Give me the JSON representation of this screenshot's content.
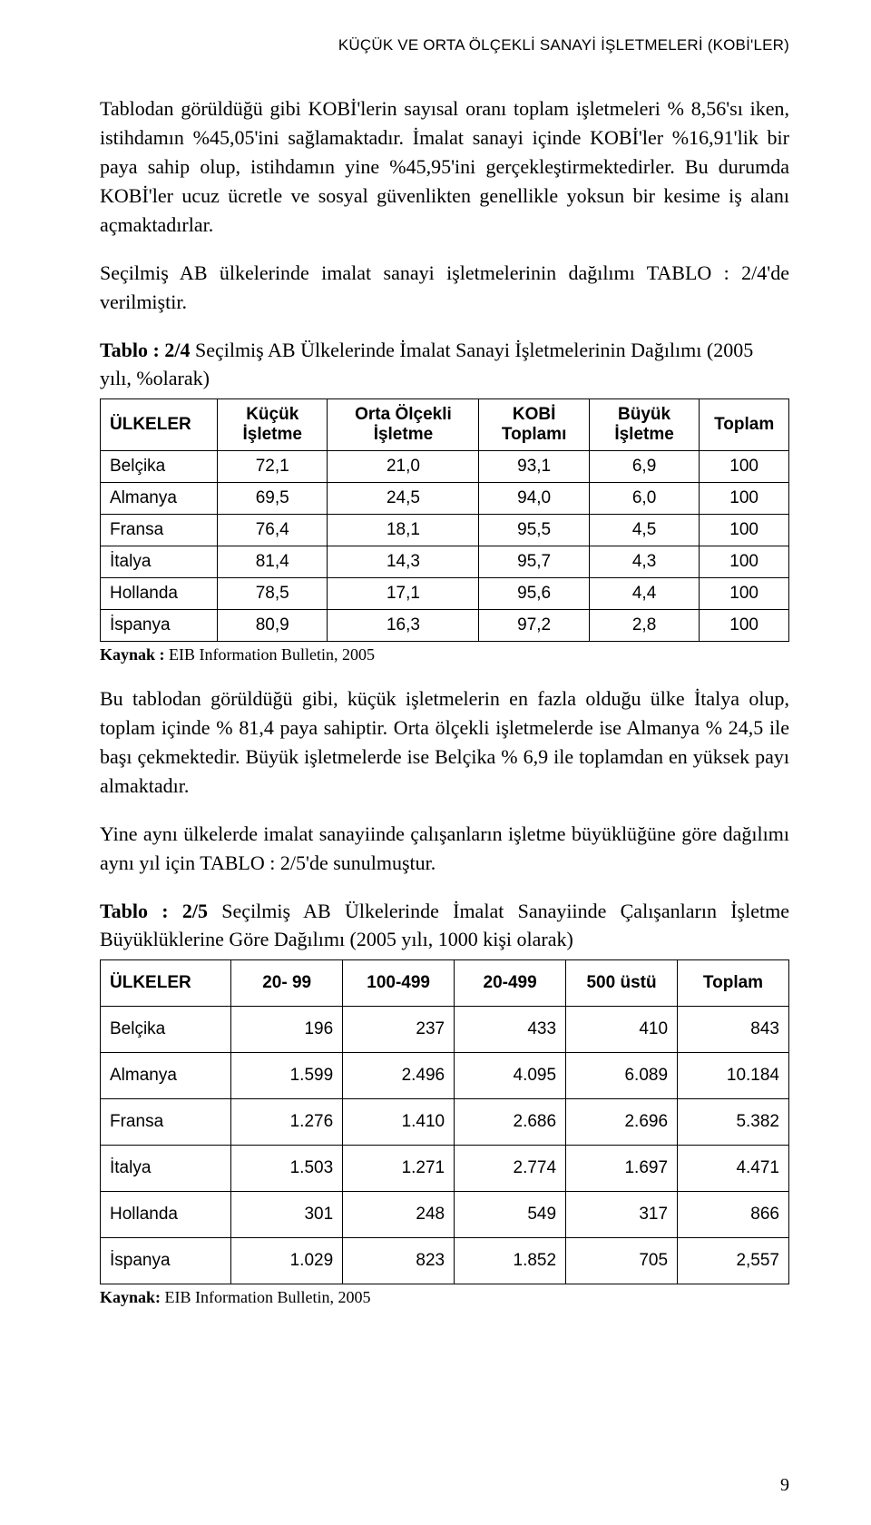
{
  "header": {
    "running": "KÜÇÜK VE ORTA ÖLÇEKLİ SANAYİ İŞLETMELERİ (KOBİ'LER)"
  },
  "paragraphs": {
    "p1": "Tablodan görüldüğü gibi KOBİ'lerin sayısal oranı toplam işletmeleri % 8,56'sı iken, istihdamın %45,05'ini sağlamaktadır. İmalat sanayi içinde KOBİ'ler %16,91'lik bir paya sahip olup, istihdamın yine %45,95'ini gerçekleştirmektedirler. Bu durumda KOBİ'ler ucuz ücretle ve sosyal güvenlikten genellikle yoksun bir kesime iş alanı açmaktadırlar.",
    "p2": "Seçilmiş AB ülkelerinde imalat sanayi işletmelerinin dağılımı TABLO : 2/4'de verilmiştir.",
    "p3": "Bu tablodan görüldüğü gibi, küçük işletmelerin en fazla olduğu ülke İtalya olup, toplam içinde % 81,4 paya sahiptir. Orta ölçekli işletmelerde ise Almanya % 24,5 ile başı çekmektedir. Büyük işletmelerde ise Belçika % 6,9 ile toplamdan en yüksek payı almaktadır.",
    "p4": "Yine aynı ülkelerde imalat sanayiinde çalışanların işletme büyüklüğüne göre dağılımı aynı yıl için TABLO : 2/5'de sunulmuştur."
  },
  "table1": {
    "caption_lead": "Tablo : 2/4",
    "caption_rest": " Seçilmiş AB Ülkelerinde İmalat Sanayi İşletmelerinin Dağılımı (2005 yılı, %olarak)",
    "columns": [
      "ÜLKELER",
      "Küçük İşletme",
      "Orta Ölçekli İşletme",
      "KOBİ Toplamı",
      "Büyük İşletme",
      "Toplam"
    ],
    "rows": [
      [
        "Belçika",
        "72,1",
        "21,0",
        "93,1",
        "6,9",
        "100"
      ],
      [
        "Almanya",
        "69,5",
        "24,5",
        "94,0",
        "6,0",
        "100"
      ],
      [
        "Fransa",
        "76,4",
        "18,1",
        "95,5",
        "4,5",
        "100"
      ],
      [
        "İtalya",
        "81,4",
        "14,3",
        "95,7",
        "4,3",
        "100"
      ],
      [
        "Hollanda",
        "78,5",
        "17,1",
        "95,6",
        "4,4",
        "100"
      ],
      [
        "İspanya",
        "80,9",
        "16,3",
        "97,2",
        "2,8",
        "100"
      ]
    ],
    "source_lead": "Kaynak :",
    "source_rest": " EIB Information Bulletin, 2005"
  },
  "table2": {
    "caption_lead": "Tablo : 2/5",
    "caption_rest": " Seçilmiş AB Ülkelerinde İmalat Sanayiinde Çalışanların İşletme Büyüklüklerine Göre Dağılımı (2005 yılı, 1000 kişi olarak)",
    "columns": [
      "ÜLKELER",
      "20- 99",
      "100-499",
      "20-499",
      "500 üstü",
      "Toplam"
    ],
    "rows": [
      [
        "Belçika",
        "196",
        "237",
        "433",
        "410",
        "843"
      ],
      [
        "Almanya",
        "1.599",
        "2.496",
        "4.095",
        "6.089",
        "10.184"
      ],
      [
        "Fransa",
        "1.276",
        "1.410",
        "2.686",
        "2.696",
        "5.382"
      ],
      [
        "İtalya",
        "1.503",
        "1.271",
        "2.774",
        "1.697",
        "4.471"
      ],
      [
        "Hollanda",
        "301",
        "248",
        "549",
        "317",
        "866"
      ],
      [
        "İspanya",
        "1.029",
        "823",
        "1.852",
        "705",
        "2,557"
      ]
    ],
    "source_lead": "Kaynak:",
    "source_rest": " EIB Information Bulletin, 2005"
  },
  "page_number": "9"
}
